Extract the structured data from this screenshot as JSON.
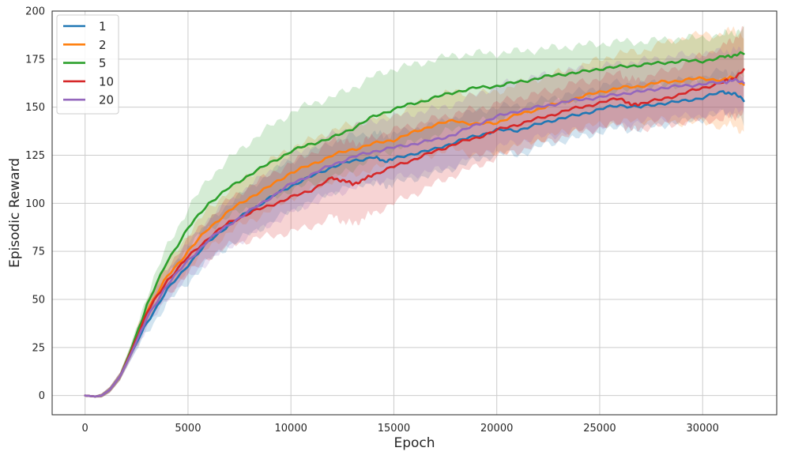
{
  "chart_data": {
    "type": "line",
    "title": "",
    "xlabel": "Epoch",
    "ylabel": "Episodic Reward",
    "xlim": [
      -1600,
      33600
    ],
    "ylim": [
      -10,
      200
    ],
    "xticks": [
      0,
      5000,
      10000,
      15000,
      20000,
      25000,
      30000
    ],
    "yticks": [
      0,
      25,
      50,
      75,
      100,
      125,
      150,
      175,
      200
    ],
    "grid": true,
    "legend_position": "top-left",
    "series": [
      {
        "name": "1",
        "color": "#1f77b4",
        "x": [
          0,
          500,
          800,
          1200,
          1700,
          2200,
          3000,
          4000,
          5000,
          6000,
          7000,
          8000,
          9000,
          10000,
          11000,
          12000,
          13000,
          14000,
          14500,
          15000,
          16000,
          17000,
          18000,
          19000,
          20000,
          21000,
          22000,
          23000,
          24000,
          25000,
          26000,
          27000,
          28000,
          29000,
          30000,
          31000,
          31500,
          32000
        ],
        "values": [
          0,
          -0.5,
          0,
          3,
          10,
          21,
          38,
          55,
          68,
          80,
          89,
          96,
          103,
          109,
          114,
          119,
          122,
          124,
          122,
          123,
          126,
          128,
          132,
          135,
          138,
          138,
          141,
          144,
          146,
          149,
          151,
          150,
          152,
          153,
          155,
          158,
          157,
          154
        ],
        "band_width": [
          0,
          0.5,
          1,
          1.5,
          2,
          3,
          5,
          7,
          9,
          10,
          11,
          12,
          13,
          13,
          13,
          13,
          13,
          13,
          13,
          13,
          13,
          13,
          13,
          13,
          12,
          13,
          12,
          12,
          12,
          12,
          12,
          12,
          11,
          11,
          11,
          11,
          11,
          12
        ]
      },
      {
        "name": "2",
        "color": "#ff7f0e",
        "x": [
          0,
          500,
          800,
          1200,
          1700,
          2200,
          3000,
          4000,
          5000,
          6000,
          7000,
          8000,
          9000,
          10000,
          11000,
          12000,
          13000,
          14000,
          15000,
          16000,
          17000,
          18000,
          19000,
          20000,
          21000,
          22000,
          23000,
          24000,
          25000,
          26000,
          27000,
          28000,
          29000,
          30000,
          31000,
          31500,
          32000
        ],
        "values": [
          0,
          -0.5,
          0,
          3,
          10,
          22,
          44,
          62,
          75,
          87,
          96,
          103,
          109,
          116,
          120,
          125,
          128,
          131,
          133,
          137,
          141,
          143,
          141,
          142,
          146,
          149,
          152,
          155,
          158,
          160,
          161,
          163,
          164,
          165,
          164,
          166,
          161
        ],
        "band_width": [
          0,
          0.5,
          1,
          1.5,
          2,
          3,
          5,
          7,
          9,
          10,
          11,
          12,
          13,
          13,
          13,
          13,
          13,
          13,
          13,
          14,
          15,
          15,
          16,
          16,
          16,
          16,
          16,
          16,
          17,
          18,
          18,
          20,
          22,
          23,
          24,
          25,
          25
        ]
      },
      {
        "name": "5",
        "color": "#2ca02c",
        "x": [
          0,
          500,
          800,
          1200,
          1700,
          2200,
          3000,
          4000,
          5000,
          6000,
          7000,
          8000,
          9000,
          10000,
          11000,
          12000,
          13000,
          14000,
          15000,
          16000,
          17000,
          18000,
          19000,
          20000,
          21000,
          22000,
          23000,
          24000,
          25000,
          26000,
          27000,
          28000,
          29000,
          30000,
          31000,
          31500,
          32000
        ],
        "values": [
          0,
          -0.5,
          0,
          3,
          10,
          23,
          47,
          70,
          87,
          100,
          108,
          115,
          121,
          127,
          131,
          134,
          139,
          145,
          149,
          152,
          155,
          158,
          160,
          161,
          163,
          165,
          167,
          168,
          170,
          171,
          172,
          173,
          174,
          174,
          176,
          177,
          178
        ],
        "band_width": [
          0,
          0.5,
          1,
          1.5,
          2,
          3,
          5,
          8,
          10,
          13,
          15,
          17,
          19,
          20,
          21,
          21,
          21,
          21,
          21,
          20,
          20,
          19,
          18,
          17,
          16,
          15,
          14,
          14,
          13,
          13,
          12,
          12,
          12,
          12,
          12,
          12,
          12
        ]
      },
      {
        "name": "10",
        "color": "#d62728",
        "x": [
          0,
          500,
          800,
          1200,
          1700,
          2200,
          3000,
          4000,
          5000,
          6000,
          7000,
          8000,
          9000,
          10000,
          11000,
          12000,
          12500,
          13000,
          13500,
          14000,
          15000,
          16000,
          17000,
          18000,
          19000,
          20000,
          21000,
          22000,
          23000,
          24000,
          25000,
          26000,
          26500,
          27000,
          28000,
          29000,
          30000,
          31000,
          31500,
          32000
        ],
        "values": [
          0,
          -0.5,
          0,
          3,
          10,
          22,
          43,
          60,
          72,
          82,
          90,
          95,
          99,
          103,
          107,
          113,
          112,
          110,
          112,
          115,
          119,
          123,
          127,
          131,
          134,
          138,
          141,
          144,
          147,
          150,
          152,
          155,
          151,
          152,
          154,
          157,
          160,
          163,
          165,
          169
        ],
        "band_width": [
          0,
          0.5,
          1,
          1.5,
          2,
          3,
          5,
          7,
          9,
          10,
          12,
          14,
          16,
          18,
          19,
          20,
          21,
          21,
          20,
          20,
          19,
          18,
          17,
          16,
          15,
          14,
          14,
          13,
          13,
          13,
          13,
          13,
          13,
          13,
          14,
          15,
          17,
          19,
          20,
          22
        ]
      },
      {
        "name": "20",
        "color": "#9467bd",
        "x": [
          0,
          500,
          800,
          1200,
          1700,
          2200,
          3000,
          4000,
          5000,
          6000,
          7000,
          8000,
          9000,
          10000,
          11000,
          12000,
          13000,
          14000,
          15000,
          16000,
          17000,
          18000,
          19000,
          20000,
          21000,
          22000,
          23000,
          24000,
          25000,
          26000,
          27000,
          28000,
          29000,
          30000,
          31000,
          31500,
          32000
        ],
        "values": [
          0,
          -0.5,
          0,
          3,
          10,
          21,
          40,
          58,
          70,
          81,
          89,
          96,
          103,
          110,
          115,
          120,
          124,
          127,
          129,
          131,
          133,
          136,
          141,
          145,
          148,
          150,
          152,
          154,
          155,
          157,
          158,
          160,
          161,
          162,
          163,
          164,
          163
        ],
        "band_width": [
          0,
          0.5,
          1,
          1.5,
          2,
          3,
          5,
          7,
          9,
          11,
          12,
          13,
          14,
          15,
          15,
          16,
          16,
          16,
          16,
          16,
          16,
          16,
          16,
          16,
          16,
          16,
          16,
          16,
          16,
          16,
          16,
          16,
          16,
          16,
          16,
          16,
          16
        ]
      }
    ]
  }
}
